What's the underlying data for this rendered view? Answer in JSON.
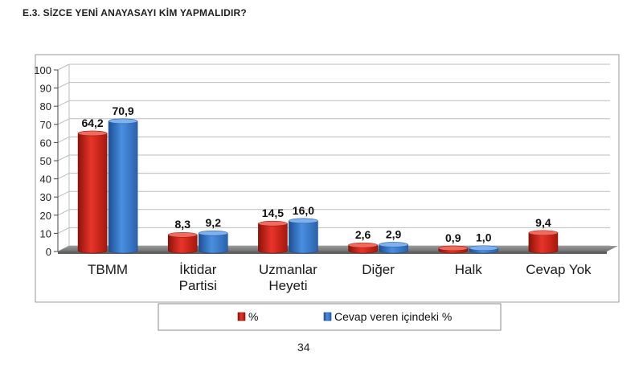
{
  "heading": "E.3. SİZCE YENİ ANAYASAYI KİM YAPMALIDIR?",
  "page_number": "34",
  "colors": {
    "series1": "#d8261a",
    "series2": "#2e72c8",
    "floor": "#8c8c8c",
    "grid": "#bdbdbd"
  },
  "chart_data": {
    "type": "bar",
    "title": "",
    "xlabel": "",
    "ylabel": "",
    "ylim": [
      0,
      100
    ],
    "yticks": [
      "0",
      "10",
      "20",
      "30",
      "40",
      "50",
      "60",
      "70",
      "80",
      "90",
      "100"
    ],
    "grid": true,
    "legend_position": "bottom",
    "categories": [
      [
        "TBMM"
      ],
      [
        "İktidar",
        "Partisi"
      ],
      [
        "Uzmanlar",
        "Heyeti"
      ],
      [
        "Diğer"
      ],
      [
        "Halk"
      ],
      [
        "Cevap Yok"
      ]
    ],
    "series": [
      {
        "name": "%",
        "values": [
          64.2,
          8.3,
          14.5,
          2.6,
          0.9,
          9.4
        ],
        "labels": [
          "64,2",
          "8,3",
          "14,5",
          "2,6",
          "0,9",
          "9,4"
        ]
      },
      {
        "name": "Cevap veren içindeki %",
        "values": [
          70.9,
          9.2,
          16.0,
          2.9,
          1.0,
          null
        ],
        "labels": [
          "70,9",
          "9,2",
          "16,0",
          "2,9",
          "1,0",
          null
        ]
      }
    ]
  }
}
